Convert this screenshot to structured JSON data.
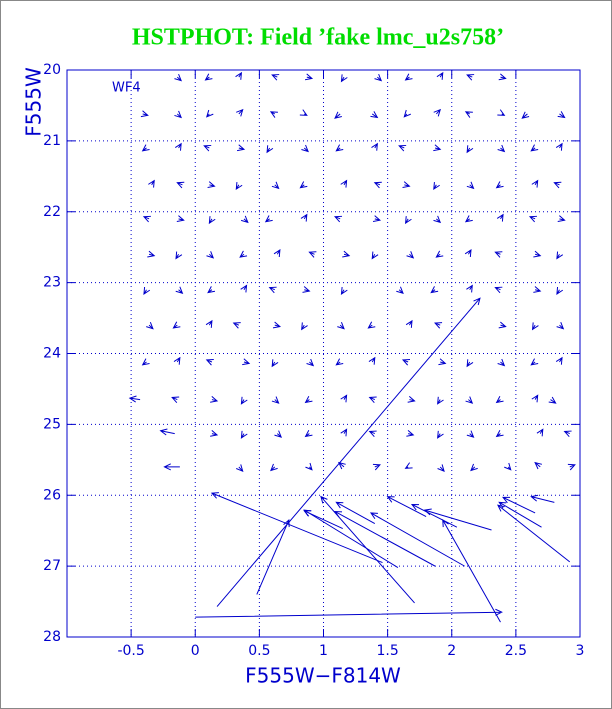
{
  "chart_data": {
    "type": "quiver",
    "title": "HSTPHOT: Field ’fake lmc_u2s758’",
    "annotation": "WF4",
    "xlabel": "F555W−F814W",
    "ylabel": "F555W",
    "xlim": [
      -1,
      3
    ],
    "ylim": [
      28,
      20
    ],
    "xticks": [
      -0.5,
      0,
      0.5,
      1,
      1.5,
      2,
      2.5,
      3
    ],
    "yticks": [
      20,
      21,
      22,
      23,
      24,
      25,
      26,
      27,
      28
    ],
    "grid": true,
    "color": "#0000cc",
    "title_color": "#00dd00",
    "x": [
      -0.14,
      0.11,
      0.34,
      0.64,
      0.87,
      1.16,
      1.42,
      1.67,
      1.91,
      2.16,
      2.38,
      -0.41,
      -0.14,
      0.11,
      0.34,
      0.62,
      0.85,
      1.13,
      1.38,
      1.65,
      1.88,
      2.14,
      2.39,
      2.59,
      2.84,
      -0.38,
      -0.13,
      0.11,
      0.34,
      0.58,
      0.85,
      1.13,
      1.4,
      1.63,
      1.87,
      2.14,
      2.38,
      2.65,
      2.84,
      -0.34,
      -0.1,
      0.11,
      0.34,
      0.62,
      0.85,
      1.16,
      1.44,
      1.63,
      1.88,
      2.14,
      2.38,
      2.65,
      2.84,
      -0.36,
      -0.13,
      0.13,
      0.38,
      0.58,
      0.85,
      1.13,
      1.4,
      1.66,
      1.88,
      2.14,
      2.38,
      2.65,
      2.84,
      -0.36,
      -0.13,
      0.11,
      0.38,
      0.64,
      0.93,
      1.16,
      1.4,
      1.67,
      1.91,
      2.13,
      2.38,
      2.65,
      2.84,
      -0.38,
      -0.13,
      0.13,
      0.38,
      0.62,
      0.85,
      1.16,
      1.59,
      1.87,
      2.14,
      2.38,
      2.65,
      2.84,
      -0.36,
      -0.14,
      0.11,
      0.34,
      0.62,
      0.85,
      1.13,
      1.38,
      1.67,
      1.91,
      2.38,
      2.65,
      2.84,
      -0.38,
      -0.14,
      0.13,
      0.38,
      0.62,
      0.89,
      1.13,
      1.38,
      1.66,
      1.91,
      2.14,
      2.38,
      2.65,
      2.84,
      -0.43,
      -0.14,
      0.13,
      0.38,
      0.62,
      0.89,
      1.16,
      1.4,
      1.67,
      1.91,
      2.13,
      2.38,
      2.65,
      2.77,
      -0.16,
      0.13,
      0.38,
      0.64,
      0.89,
      1.16,
      1.4,
      1.66,
      1.91,
      2.14,
      2.38,
      2.69,
      2.92,
      -0.12,
      0.34,
      0.62,
      0.89,
      1.16,
      1.4,
      1.66,
      1.91,
      2.18,
      2.44,
      2.69,
      2.92,
      0.17,
      0.48,
      0.0,
      1.46,
      2.38,
      1.71,
      1.87,
      1.58,
      2.92,
      2.1,
      2.31,
      1.15,
      2.04,
      2.7,
      2.65,
      1.8,
      1.4,
      2.8
    ],
    "y": [
      20.1,
      20.1,
      20.1,
      20.1,
      20.1,
      20.1,
      20.1,
      20.1,
      20.1,
      20.1,
      20.1,
      20.62,
      20.62,
      20.62,
      20.62,
      20.62,
      20.62,
      20.62,
      20.62,
      20.62,
      20.62,
      20.62,
      20.62,
      20.62,
      20.62,
      21.1,
      21.1,
      21.1,
      21.1,
      21.1,
      21.1,
      21.1,
      21.1,
      21.1,
      21.1,
      21.1,
      21.1,
      21.1,
      21.1,
      21.62,
      21.62,
      21.62,
      21.62,
      21.62,
      21.62,
      21.62,
      21.62,
      21.62,
      21.62,
      21.62,
      21.62,
      21.62,
      21.62,
      22.1,
      22.1,
      22.1,
      22.1,
      22.1,
      22.1,
      22.1,
      22.1,
      22.1,
      22.1,
      22.1,
      22.1,
      22.1,
      22.1,
      22.6,
      22.6,
      22.6,
      22.6,
      22.6,
      22.6,
      22.6,
      22.6,
      22.6,
      22.6,
      22.6,
      22.6,
      22.6,
      22.6,
      23.1,
      23.1,
      23.1,
      23.1,
      23.1,
      23.1,
      23.1,
      23.1,
      23.1,
      23.1,
      23.1,
      23.1,
      23.1,
      23.6,
      23.6,
      23.6,
      23.6,
      23.6,
      23.6,
      23.6,
      23.6,
      23.6,
      23.6,
      23.6,
      23.6,
      23.6,
      24.12,
      24.12,
      24.12,
      24.12,
      24.12,
      24.12,
      24.12,
      24.12,
      24.12,
      24.12,
      24.12,
      24.12,
      24.12,
      24.12,
      24.65,
      24.65,
      24.65,
      24.65,
      24.65,
      24.65,
      24.65,
      24.65,
      24.65,
      24.65,
      24.65,
      24.65,
      24.65,
      24.65,
      25.13,
      25.13,
      25.13,
      25.13,
      25.13,
      25.13,
      25.13,
      25.13,
      25.13,
      25.13,
      25.13,
      25.13,
      25.13,
      25.6,
      25.6,
      25.6,
      25.6,
      25.6,
      25.6,
      25.6,
      25.6,
      25.6,
      25.6,
      25.6,
      25.6,
      27.57,
      27.4,
      27.72,
      26.95,
      27.79,
      27.52,
      27.0,
      27.02,
      26.94,
      27.0,
      26.49,
      26.47,
      26.45,
      26.45,
      26.25,
      26.3,
      26.4,
      26.1
    ],
    "u": [
      0.03,
      -0.03,
      0.02,
      -0.04,
      0.04,
      -0.02,
      0.03,
      -0.03,
      0.02,
      -0.04,
      0.04,
      0.04,
      0.03,
      -0.02,
      0.03,
      -0.03,
      0.02,
      -0.04,
      0.04,
      -0.02,
      0.03,
      -0.03,
      0.02,
      -0.04,
      0.04,
      -0.03,
      0.02,
      -0.04,
      0.04,
      -0.02,
      0.03,
      -0.03,
      0.02,
      -0.04,
      0.04,
      -0.02,
      0.03,
      -0.03,
      0.02,
      0.02,
      -0.04,
      0.04,
      -0.02,
      0.03,
      -0.03,
      0.02,
      -0.04,
      0.04,
      -0.02,
      0.03,
      -0.03,
      0.02,
      -0.04,
      -0.04,
      0.04,
      -0.02,
      0.03,
      -0.03,
      0.02,
      -0.04,
      0.04,
      -0.02,
      0.03,
      -0.03,
      0.02,
      -0.04,
      0.04,
      0.04,
      -0.02,
      0.03,
      -0.03,
      0.02,
      -0.04,
      0.04,
      -0.02,
      0.03,
      -0.03,
      0.02,
      -0.04,
      0.04,
      -0.02,
      -0.02,
      0.03,
      -0.03,
      0.02,
      -0.04,
      0.04,
      -0.02,
      0.03,
      -0.03,
      0.02,
      -0.04,
      0.04,
      -0.02,
      0.03,
      -0.03,
      0.02,
      -0.04,
      0.04,
      -0.02,
      0.03,
      -0.03,
      0.02,
      -0.04,
      0.04,
      -0.02,
      0.03,
      -0.03,
      0.02,
      -0.04,
      0.04,
      -0.02,
      0.03,
      -0.03,
      0.02,
      -0.04,
      0.04,
      -0.02,
      0.03,
      -0.03,
      0.02,
      -0.08,
      -0.04,
      0.04,
      -0.02,
      0.03,
      -0.03,
      0.02,
      -0.04,
      0.04,
      -0.02,
      0.03,
      -0.03,
      0.02,
      0.04,
      -0.11,
      0.04,
      -0.02,
      0.03,
      -0.03,
      0.02,
      -0.04,
      0.04,
      -0.02,
      0.03,
      -0.03,
      0.02,
      -0.04,
      -0.12,
      0.03,
      -0.03,
      0.02,
      -0.04,
      0.04,
      -0.02,
      0.03,
      -0.03,
      0.02,
      -0.04,
      0.04,
      2.05,
      0.25,
      2.39,
      -1.33,
      -0.45,
      -0.73,
      -0.78,
      -0.73,
      -0.56,
      -0.73,
      -0.52,
      -0.3,
      -0.35,
      -0.33,
      -0.25,
      -0.3,
      -0.3,
      -0.18
    ],
    "v": [
      0.05,
      0.04,
      -0.06,
      -0.03,
      0.02,
      0.06,
      0.05,
      0.04,
      -0.06,
      -0.03,
      0.02,
      0.02,
      0.05,
      0.04,
      -0.06,
      -0.03,
      0.02,
      0.06,
      0.05,
      0.04,
      -0.06,
      -0.03,
      0.02,
      0.06,
      0.05,
      0.04,
      -0.06,
      -0.03,
      0.02,
      0.06,
      0.05,
      0.04,
      -0.06,
      -0.03,
      0.02,
      0.06,
      0.05,
      0.04,
      -0.06,
      -0.06,
      -0.03,
      0.02,
      0.06,
      0.05,
      0.04,
      -0.06,
      -0.03,
      0.02,
      0.06,
      0.05,
      0.04,
      -0.06,
      -0.03,
      -0.03,
      0.02,
      0.06,
      0.05,
      0.04,
      -0.06,
      -0.03,
      0.02,
      0.06,
      0.05,
      0.04,
      -0.06,
      -0.03,
      0.02,
      0.02,
      0.06,
      0.05,
      0.04,
      -0.06,
      -0.03,
      0.02,
      0.06,
      0.05,
      0.04,
      -0.06,
      -0.03,
      0.02,
      0.06,
      0.06,
      0.05,
      0.04,
      -0.06,
      -0.03,
      0.02,
      0.06,
      0.05,
      0.04,
      -0.06,
      -0.03,
      0.02,
      0.06,
      0.05,
      0.04,
      -0.06,
      -0.03,
      0.02,
      0.06,
      0.05,
      0.04,
      -0.06,
      -0.03,
      0.02,
      0.06,
      0.05,
      0.04,
      -0.06,
      -0.03,
      0.02,
      0.06,
      0.05,
      0.04,
      -0.06,
      -0.03,
      0.02,
      0.06,
      0.05,
      0.04,
      -0.06,
      -0.02,
      -0.03,
      0.02,
      0.06,
      0.05,
      0.04,
      -0.06,
      -0.03,
      0.02,
      0.06,
      0.05,
      0.04,
      -0.06,
      0.05,
      -0.04,
      0.02,
      0.06,
      0.05,
      0.04,
      -0.06,
      -0.03,
      0.02,
      0.06,
      0.05,
      0.04,
      -0.06,
      -0.03,
      0.0,
      0.06,
      0.05,
      0.04,
      -0.06,
      -0.03,
      0.02,
      0.06,
      0.05,
      0.04,
      -0.06,
      -0.03,
      -4.35,
      -1.05,
      -0.07,
      -0.98,
      -1.44,
      -1.5,
      -0.77,
      -0.81,
      -0.8,
      -0.75,
      -0.28,
      -0.25,
      -0.32,
      -0.35,
      -0.22,
      -0.28,
      -0.3,
      -0.08
    ]
  }
}
